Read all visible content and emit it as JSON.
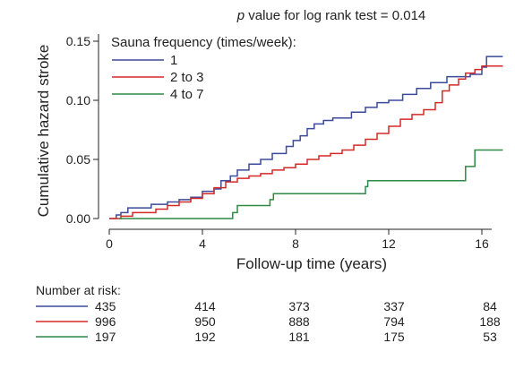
{
  "chart_data": {
    "type": "line",
    "subtype": "step",
    "title_italic": "p",
    "title_rest": " value for log rank test = 0.014",
    "xlabel": "Follow-up time (years)",
    "ylabel": "Cumulative hazard stroke",
    "xlim": [
      0,
      17
    ],
    "ylim": [
      0,
      0.15
    ],
    "xticks": [
      0,
      4,
      8,
      12,
      16
    ],
    "yticks": [
      0.0,
      0.05,
      0.1,
      0.15
    ],
    "ytick_labels": [
      "0.00",
      "0.05",
      "0.10",
      "0.15"
    ],
    "grid": false,
    "legend": {
      "title": "Sauna frequency (times/week):",
      "placement": "top-left"
    },
    "series": [
      {
        "name": "1",
        "color": "#3b4a9a",
        "points": [
          [
            0,
            0
          ],
          [
            0.3,
            0
          ],
          [
            0.3,
            0.003
          ],
          [
            0.5,
            0.003
          ],
          [
            0.5,
            0.005
          ],
          [
            0.8,
            0.005
          ],
          [
            0.8,
            0.009
          ],
          [
            1.8,
            0.009
          ],
          [
            1.8,
            0.012
          ],
          [
            2.5,
            0.012
          ],
          [
            2.5,
            0.014
          ],
          [
            3,
            0.014
          ],
          [
            3,
            0.016
          ],
          [
            3.5,
            0.016
          ],
          [
            3.5,
            0.018
          ],
          [
            4,
            0.018
          ],
          [
            4,
            0.023
          ],
          [
            4.5,
            0.023
          ],
          [
            4.5,
            0.025
          ],
          [
            4.8,
            0.025
          ],
          [
            4.8,
            0.032
          ],
          [
            5.2,
            0.032
          ],
          [
            5.2,
            0.036
          ],
          [
            5.5,
            0.036
          ],
          [
            5.5,
            0.041
          ],
          [
            6,
            0.041
          ],
          [
            6,
            0.046
          ],
          [
            6.5,
            0.046
          ],
          [
            6.5,
            0.05
          ],
          [
            7,
            0.05
          ],
          [
            7,
            0.055
          ],
          [
            7.6,
            0.055
          ],
          [
            7.6,
            0.061
          ],
          [
            7.9,
            0.061
          ],
          [
            7.9,
            0.066
          ],
          [
            8.2,
            0.066
          ],
          [
            8.2,
            0.07
          ],
          [
            8.5,
            0.07
          ],
          [
            8.5,
            0.076
          ],
          [
            8.8,
            0.076
          ],
          [
            8.8,
            0.08
          ],
          [
            9.2,
            0.08
          ],
          [
            9.2,
            0.083
          ],
          [
            9.6,
            0.083
          ],
          [
            9.6,
            0.085
          ],
          [
            10.4,
            0.085
          ],
          [
            10.4,
            0.09
          ],
          [
            11,
            0.09
          ],
          [
            11,
            0.094
          ],
          [
            11.5,
            0.094
          ],
          [
            11.5,
            0.098
          ],
          [
            12,
            0.098
          ],
          [
            12,
            0.1
          ],
          [
            12.6,
            0.1
          ],
          [
            12.6,
            0.105
          ],
          [
            13.2,
            0.105
          ],
          [
            13.2,
            0.11
          ],
          [
            13.8,
            0.11
          ],
          [
            13.8,
            0.115
          ],
          [
            14.5,
            0.115
          ],
          [
            14.5,
            0.12
          ],
          [
            15.5,
            0.12
          ],
          [
            15.5,
            0.122
          ],
          [
            16,
            0.122
          ],
          [
            16,
            0.128
          ],
          [
            16.2,
            0.128
          ],
          [
            16.2,
            0.137
          ],
          [
            16.9,
            0.137
          ]
        ]
      },
      {
        "name": "2 to 3",
        "color": "#d42a27",
        "points": [
          [
            0,
            0
          ],
          [
            0.5,
            0
          ],
          [
            0.5,
            0.002
          ],
          [
            1,
            0.002
          ],
          [
            1,
            0.005
          ],
          [
            2,
            0.005
          ],
          [
            2,
            0.008
          ],
          [
            2.5,
            0.008
          ],
          [
            2.5,
            0.011
          ],
          [
            3,
            0.011
          ],
          [
            3,
            0.014
          ],
          [
            3.5,
            0.014
          ],
          [
            3.5,
            0.017
          ],
          [
            4,
            0.017
          ],
          [
            4,
            0.021
          ],
          [
            4.5,
            0.021
          ],
          [
            4.5,
            0.026
          ],
          [
            5,
            0.026
          ],
          [
            5,
            0.031
          ],
          [
            5.5,
            0.031
          ],
          [
            5.5,
            0.034
          ],
          [
            6,
            0.034
          ],
          [
            6,
            0.036
          ],
          [
            6.5,
            0.036
          ],
          [
            6.5,
            0.038
          ],
          [
            7,
            0.038
          ],
          [
            7,
            0.041
          ],
          [
            7.5,
            0.041
          ],
          [
            7.5,
            0.043
          ],
          [
            8,
            0.043
          ],
          [
            8,
            0.046
          ],
          [
            8.5,
            0.046
          ],
          [
            8.5,
            0.05
          ],
          [
            9,
            0.05
          ],
          [
            9,
            0.053
          ],
          [
            9.5,
            0.053
          ],
          [
            9.5,
            0.055
          ],
          [
            10,
            0.055
          ],
          [
            10,
            0.058
          ],
          [
            10.5,
            0.058
          ],
          [
            10.5,
            0.062
          ],
          [
            11,
            0.062
          ],
          [
            11,
            0.067
          ],
          [
            11.5,
            0.067
          ],
          [
            11.5,
            0.072
          ],
          [
            12,
            0.072
          ],
          [
            12,
            0.078
          ],
          [
            12.5,
            0.078
          ],
          [
            12.5,
            0.084
          ],
          [
            13,
            0.084
          ],
          [
            13,
            0.088
          ],
          [
            13.5,
            0.088
          ],
          [
            13.5,
            0.092
          ],
          [
            14,
            0.092
          ],
          [
            14,
            0.098
          ],
          [
            14.3,
            0.098
          ],
          [
            14.3,
            0.108
          ],
          [
            14.6,
            0.108
          ],
          [
            14.6,
            0.113
          ],
          [
            15,
            0.113
          ],
          [
            15,
            0.118
          ],
          [
            15.3,
            0.118
          ],
          [
            15.3,
            0.123
          ],
          [
            15.7,
            0.123
          ],
          [
            15.7,
            0.126
          ],
          [
            16,
            0.126
          ],
          [
            16,
            0.129
          ],
          [
            16.9,
            0.129
          ]
        ]
      },
      {
        "name": "4 to 7",
        "color": "#2e8a45",
        "points": [
          [
            0.4,
            0
          ],
          [
            5.3,
            0
          ],
          [
            5.3,
            0.005
          ],
          [
            5.5,
            0.005
          ],
          [
            5.5,
            0.011
          ],
          [
            6.9,
            0.011
          ],
          [
            6.9,
            0.016
          ],
          [
            7.05,
            0.016
          ],
          [
            7.05,
            0.021
          ],
          [
            11,
            0.021
          ],
          [
            11,
            0.027
          ],
          [
            11.1,
            0.027
          ],
          [
            11.1,
            0.032
          ],
          [
            15.3,
            0.032
          ],
          [
            15.3,
            0.044
          ],
          [
            15.7,
            0.044
          ],
          [
            15.7,
            0.058
          ],
          [
            16.9,
            0.058
          ]
        ]
      }
    ],
    "risk_table": {
      "title": "Number at risk:",
      "time_points": [
        0,
        4,
        8,
        12,
        16
      ],
      "rows": [
        {
          "series": "1",
          "color": "#3b4a9a",
          "values": [
            "435",
            "414",
            "373",
            "337",
            "84"
          ]
        },
        {
          "series": "2 to 3",
          "color": "#d42a27",
          "values": [
            "996",
            "950",
            "888",
            "794",
            "188"
          ]
        },
        {
          "series": "4 to 7",
          "color": "#2e8a45",
          "values": [
            "197",
            "192",
            "181",
            "175",
            "53"
          ]
        }
      ]
    }
  }
}
